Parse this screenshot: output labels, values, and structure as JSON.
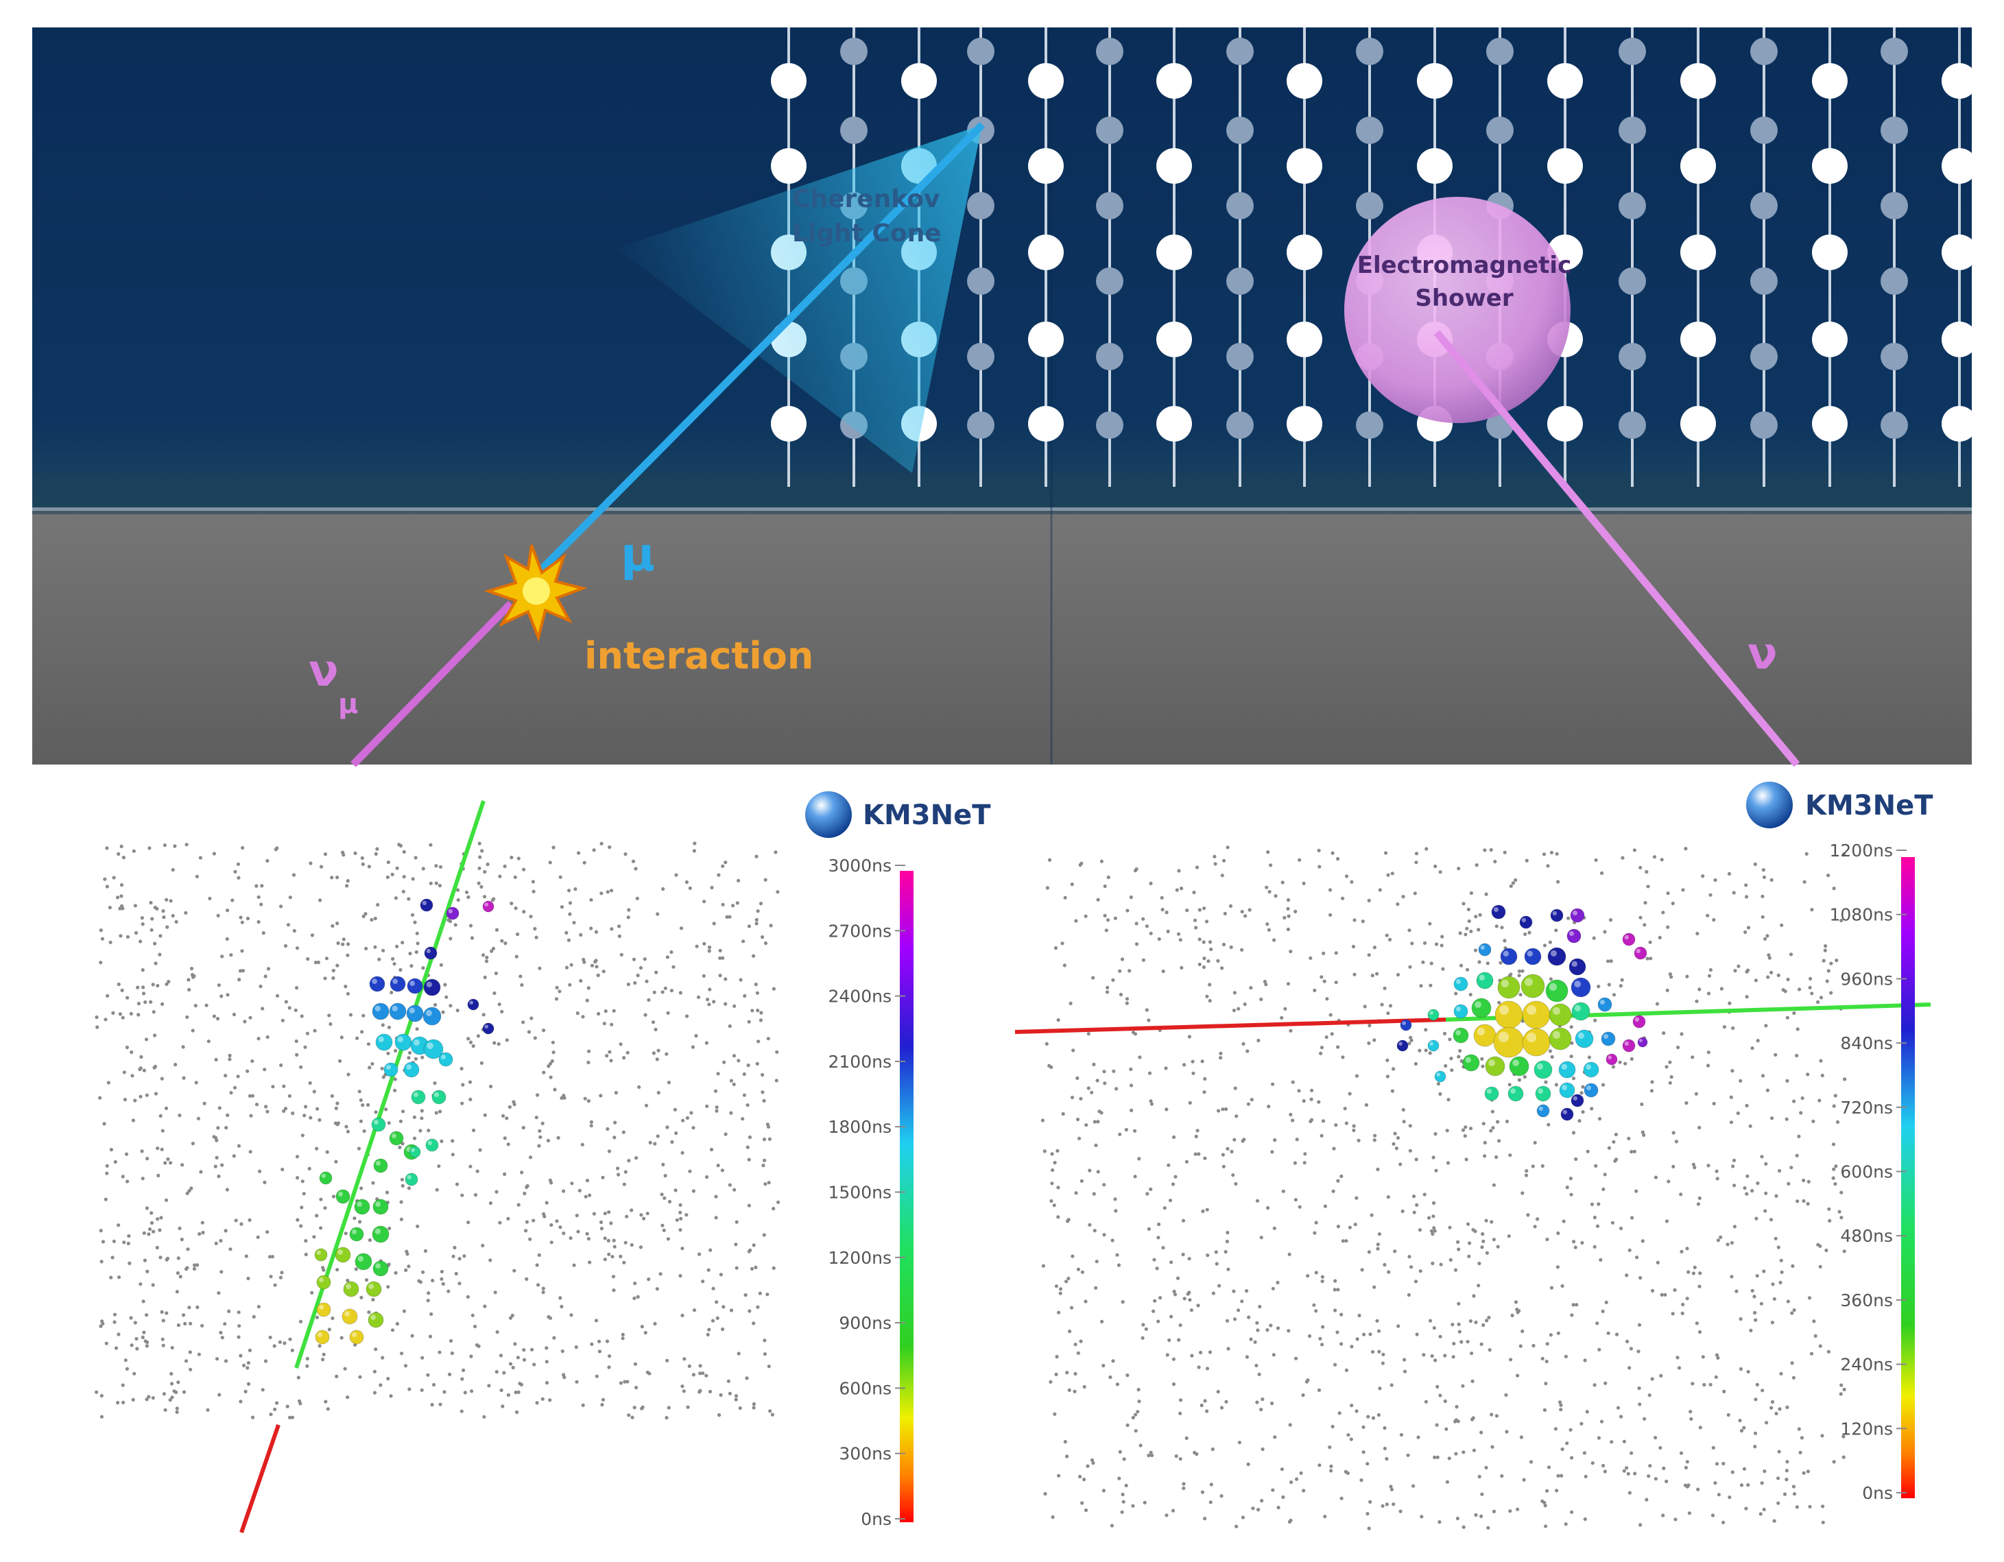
{
  "colors": {
    "sea": "#0b2e5a",
    "seabed": "#6a6a6a",
    "muon": "#2aa8e8",
    "neutrino": "#d77de0",
    "interaction": "#f0a030",
    "string_white": "#ffffff",
    "string_faded": "#8aa0bb",
    "shower": "#f0a8f4",
    "fit_green": "#3ee03e",
    "fit_red": "#e02020",
    "brand": "#1f3f7a"
  },
  "top": {
    "track_panel": {
      "cone_label_line1": "Cherenkov",
      "cone_label_line2": "Light Cone",
      "muon_label": "μ",
      "neutrino_label": "ν",
      "neutrino_subscript": "μ",
      "interaction_label": "interaction"
    },
    "shower_panel": {
      "shower_label_line1": "Electromagnetic",
      "shower_label_line2": "Shower",
      "neutrino_label": "ν"
    }
  },
  "bottom": {
    "left_event": {
      "logo_text": "KM3NeT",
      "colorbar_ticks": [
        "3000ns",
        "2700ns",
        "2400ns",
        "2100ns",
        "1800ns",
        "1500ns",
        "1200ns",
        "900ns",
        "600ns",
        "300ns",
        "0ns"
      ]
    },
    "right_event": {
      "logo_text": "KM3NeT",
      "colorbar_ticks": [
        "1200ns",
        "1080ns",
        "960ns",
        "840ns",
        "720ns",
        "600ns",
        "480ns",
        "360ns",
        "240ns",
        "120ns",
        "0ns"
      ]
    }
  }
}
